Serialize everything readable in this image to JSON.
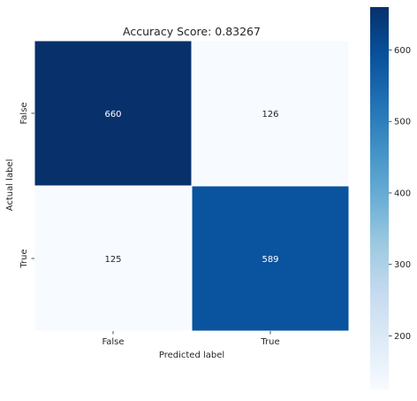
{
  "chart_data": {
    "type": "heatmap",
    "title": "Accuracy Score: 0.83267",
    "xlabel": "Predicted label",
    "ylabel": "Actual label",
    "x_categories": [
      "False",
      "True"
    ],
    "y_categories": [
      "False",
      "True"
    ],
    "values": [
      [
        660,
        126
      ],
      [
        125,
        589
      ]
    ],
    "colormap": "Blues",
    "color_range": [
      125,
      660
    ],
    "colorbar_ticks": [
      200,
      300,
      400,
      500,
      600
    ],
    "cell_text_colors": {
      "light_cell": "#262626",
      "dark_cell": "#ffffff"
    }
  }
}
